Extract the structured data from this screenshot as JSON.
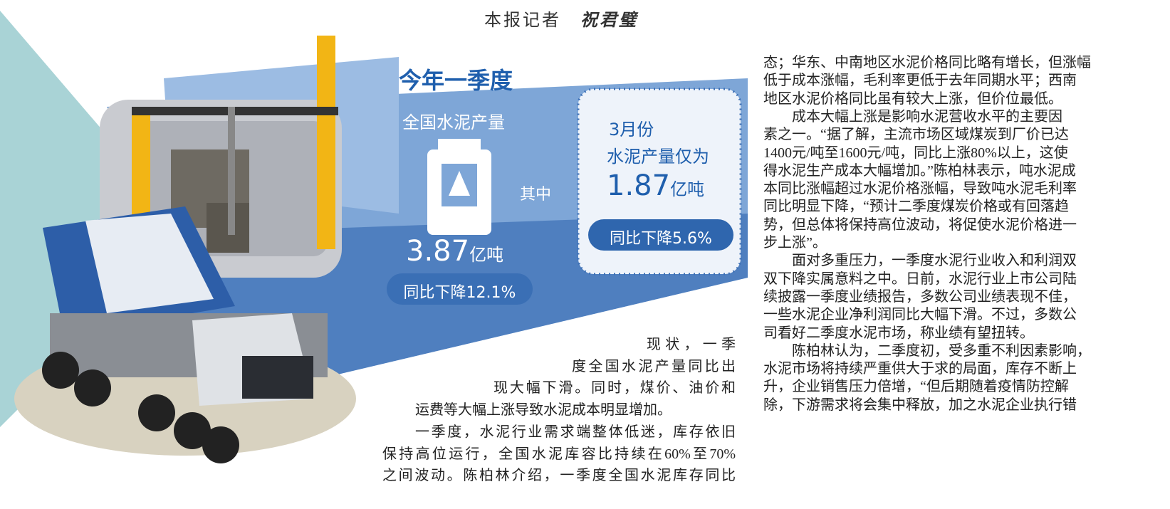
{
  "byline": {
    "label": "本报记者",
    "name": "祝君璧"
  },
  "infographic": {
    "heading": "今年一季度",
    "national_label": "全国水泥产量",
    "bag_mark": "其中",
    "national_value": "3.87",
    "national_unit": "亿吨",
    "national_change": "同比下降12.1%",
    "march_label": "3月份",
    "march_desc": "水泥产量仅为",
    "march_value": "1.87",
    "march_unit": "亿吨",
    "march_change": "同比下降5.6%"
  },
  "left_column": [
    "现状，一季",
    "度全国水泥产量同比出",
    "现大幅下滑。同时，煤价、油价和",
    "运费等大幅上涨导致水泥成本明显增加。",
    "一季度，水泥行业需求端整体低迷，库存依旧",
    "保持高位运行，全国水泥库容比持续在60%至70%",
    "之间波动。陈柏林介绍，一季度全国水泥库存同比"
  ],
  "right_column": [
    "态；华东、中南地区水泥价格同比略有增长，但涨幅",
    "低于成本涨幅，毛利率更低于去年同期水平；西南",
    "地区水泥价格同比虽有较大上涨，但价位最低。",
    "成本大幅上涨是影响水泥营收水平的主要因",
    "素之一。“据了解，主流市场区域煤炭到厂价已达",
    "1400元/吨至1600元/吨，同比上涨80%以上，这使",
    "得水泥生产成本大幅增加。”陈柏林表示，吨水泥成",
    "本同比涨幅超过水泥价格涨幅，导致吨水泥毛利率",
    "同比明显下降，“预计二季度煤炭价格或有回落趋",
    "势，但总体将保持高位波动，将促使水泥价格进一",
    "步上涨”。",
    "面对多重压力，一季度水泥行业收入和利润双",
    "双下降实属意料之中。日前，水泥行业上市公司陆",
    "续披露一季度业绩报告，多数公司业绩表现不佳，",
    "一些水泥企业净利润同比大幅下滑。不过，多数公",
    "司看好二季度水泥市场，称业绩有望扭转。",
    "陈柏林认为，二季度初，受多重不利因素影响，",
    "水泥市场将持续严重供大于求的局面，库存不断上",
    "升，企业销售压力倍增，“但后期随着疫情防控解",
    "除，下游需求将会集中释放，加之水泥企业执行错"
  ]
}
